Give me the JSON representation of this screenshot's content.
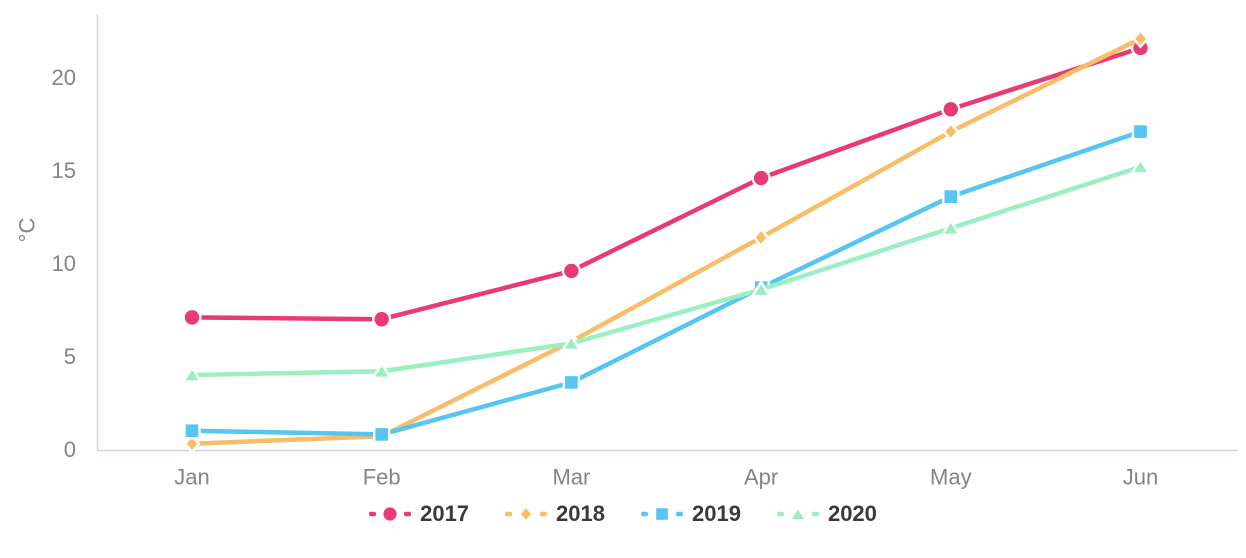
{
  "chart_data": {
    "type": "line",
    "title": "",
    "xlabel": "",
    "ylabel": "°C",
    "categories": [
      "Jan",
      "Feb",
      "Mar",
      "Apr",
      "May",
      "Jun"
    ],
    "yticks": [
      0,
      5,
      10,
      15,
      20
    ],
    "ylim": [
      0,
      23
    ],
    "grid": false,
    "legend_position": "bottom",
    "line_style": "solid",
    "series": [
      {
        "name": "2017",
        "marker": "circle",
        "color": "#EA3A73",
        "values": [
          7.1,
          7.0,
          9.6,
          14.6,
          18.3,
          21.6
        ]
      },
      {
        "name": "2018",
        "marker": "diamond",
        "color": "#F7BD68",
        "values": [
          0.3,
          0.7,
          5.8,
          11.4,
          17.1,
          22.1
        ]
      },
      {
        "name": "2019",
        "marker": "square",
        "color": "#56C5F2",
        "values": [
          1.0,
          0.8,
          3.6,
          8.7,
          13.6,
          17.1
        ]
      },
      {
        "name": "2020",
        "marker": "triangle",
        "color": "#9CEFC1",
        "values": [
          4.0,
          4.2,
          5.7,
          8.6,
          11.9,
          15.2
        ]
      }
    ],
    "colors": {
      "axis_line": "#CCD7EE",
      "tick_label": "#818589",
      "legend_label": "#3A3A3A",
      "marker_outline": "#FFFFFF",
      "background": "#FFFFFF"
    }
  }
}
